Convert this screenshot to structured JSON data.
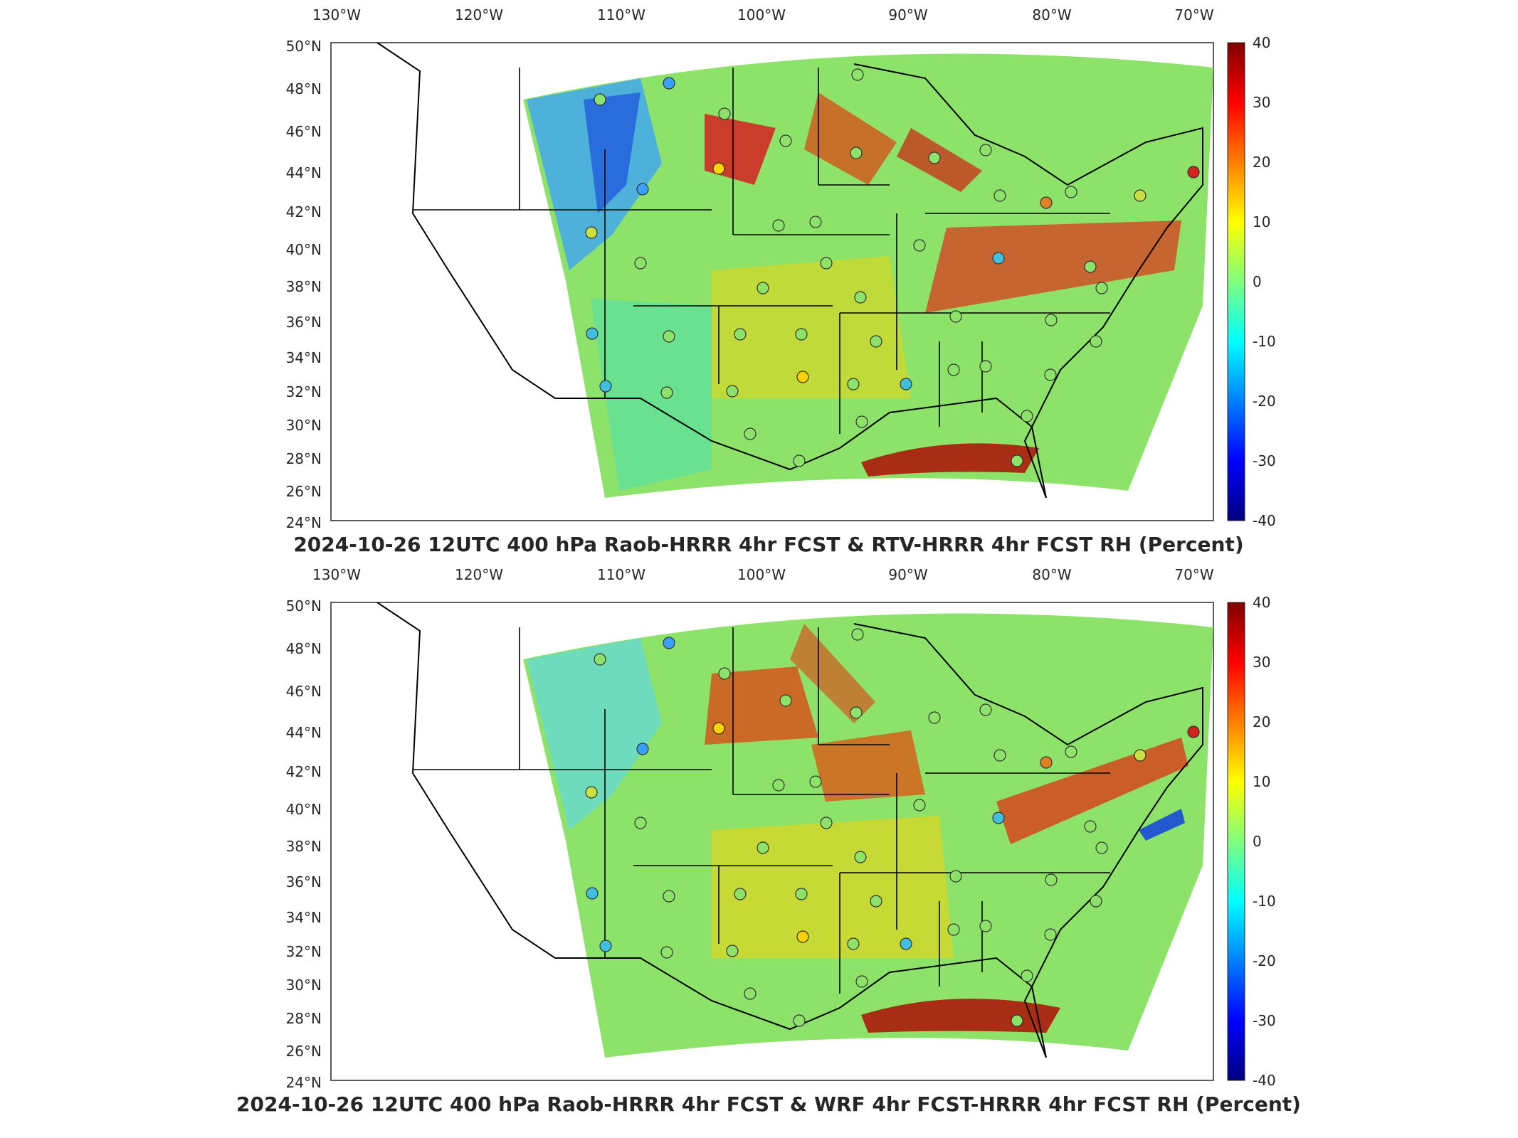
{
  "longitude_labels": [
    "130°W",
    "120°W",
    "110°W",
    "100°W",
    "90°W",
    "80°W",
    "70°W"
  ],
  "latitude_labels": [
    "50°N",
    "48°N",
    "46°N",
    "44°N",
    "42°N",
    "40°N",
    "38°N",
    "36°N",
    "34°N",
    "32°N",
    "30°N",
    "28°N",
    "26°N",
    "24°N"
  ],
  "colorbar": {
    "ticks": [
      "40",
      "30",
      "20",
      "10",
      "0",
      "-10",
      "-20",
      "-30",
      "-40"
    ],
    "colormap": "jet",
    "range": [
      -40,
      40
    ]
  },
  "panels": [
    {
      "title": "2024-10-26 12UTC 400 hPa Raob-HRRR 4hr FCST & RTV-HRRR 4hr FCST RH (Percent)"
    },
    {
      "title": "2024-10-26 12UTC 400 hPa Raob-HRRR 4hr FCST & WRF 4hr FCST-HRRR 4hr FCST RH (Percent)"
    }
  ],
  "colors": {
    "background_field": "#8de26a",
    "outline": "#000000"
  }
}
